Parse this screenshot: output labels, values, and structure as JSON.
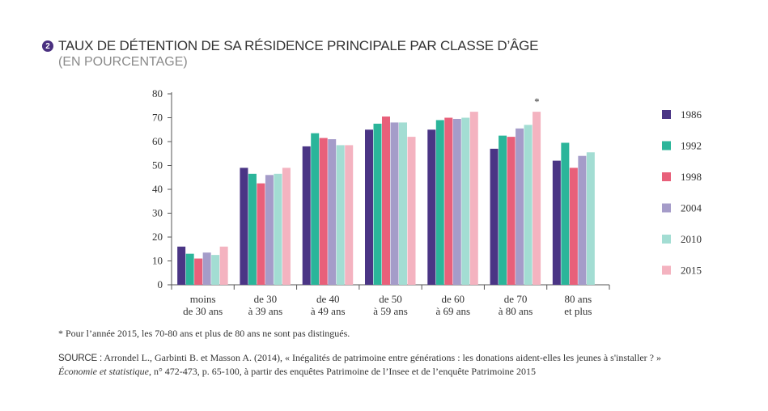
{
  "header": {
    "badge": "2",
    "title": "TAUX DE DÉTENTION DE SA RÉSIDENCE PRINCIPALE PAR CLASSE D’ÂGE",
    "subtitle": "(EN POURCENTAGE)"
  },
  "footer": {
    "note": "* Pour l’année 2015, les 70-80 ans et plus de 80 ans ne sont pas distingués.",
    "source_label": "SOURCE :",
    "source_line1": " Arrondel L., Garbinti B. et Masson A. (2014), « Inégalités de patrimoine entre générations : les donations aident-elles les jeunes à s'installer ? »",
    "source_journal": "Économie et statistique",
    "source_line2_rest": ", n° 472-473, p. 65-100, à partir des enquêtes Patrimoine de l’Insee et de l’enquête Patrimoine 2015"
  },
  "chart_data": {
    "type": "bar",
    "categories": [
      [
        "moins",
        "de 30 ans"
      ],
      [
        "de 30",
        "à 39 ans"
      ],
      [
        "de 40",
        "à 49 ans"
      ],
      [
        "de 50",
        "à 59 ans"
      ],
      [
        "de 60",
        "à 69 ans"
      ],
      [
        "de 70",
        "à 80 ans"
      ],
      [
        "80 ans",
        "et plus"
      ]
    ],
    "series": [
      {
        "name": "1986",
        "color": "#4a3585",
        "values": [
          16,
          49,
          58,
          65,
          65,
          57,
          52
        ]
      },
      {
        "name": "1992",
        "color": "#2bb59a",
        "values": [
          13,
          46.5,
          63.5,
          67.5,
          69,
          62.5,
          59.5
        ]
      },
      {
        "name": "1998",
        "color": "#e8607a",
        "values": [
          11,
          42.5,
          61.5,
          70.5,
          70,
          62,
          49
        ]
      },
      {
        "name": "2004",
        "color": "#a59cc9",
        "values": [
          13.5,
          46,
          61,
          68,
          69.5,
          65.5,
          54
        ]
      },
      {
        "name": "2010",
        "color": "#a3ddd3",
        "values": [
          12.5,
          46.5,
          58.5,
          68,
          70,
          67,
          55.5
        ]
      },
      {
        "name": "2015",
        "color": "#f4b3c0",
        "values": [
          16,
          49,
          58.5,
          62,
          72.5,
          72.5,
          null
        ]
      }
    ],
    "annotations": [
      {
        "category_index": 5,
        "series": "2015",
        "text": "*"
      }
    ],
    "yticks": [
      0,
      10,
      20,
      30,
      40,
      50,
      60,
      70,
      80
    ],
    "ylim": [
      0,
      80
    ],
    "xlabel": "",
    "ylabel": "",
    "grid": false,
    "legend_position": "right"
  }
}
